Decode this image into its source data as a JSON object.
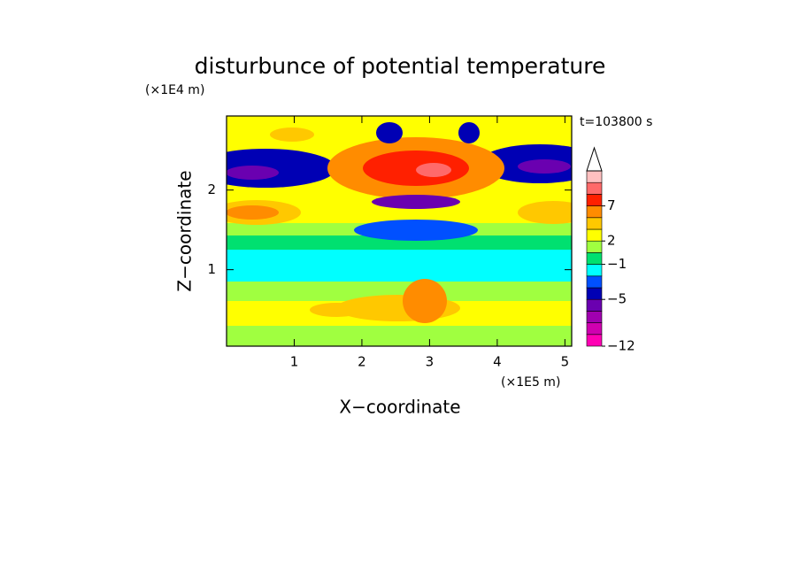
{
  "chart_data": {
    "type": "contour",
    "title": "disturbunce of potential temperature",
    "time_label": "t=103800 s",
    "x_label": "X−coordinate",
    "y_label": "Z−coordinate",
    "x_unit": "(×1E5 m)",
    "y_unit": "(×1E4 m)",
    "xlim": [
      0,
      5.1
    ],
    "xticks": [
      1,
      2,
      3,
      4,
      5
    ],
    "ylim": [
      0.04,
      2.93
    ],
    "yticks": [
      1,
      2
    ],
    "colorbar": {
      "levels": [
        -12,
        -10,
        -8,
        -6,
        -5,
        -4,
        -2,
        -1,
        1,
        2,
        3,
        5,
        7,
        9,
        11,
        13
      ],
      "colors": [
        "#ff00b4",
        "#d000b0",
        "#a000b0",
        "#6a00b0",
        "#0000b4",
        "#0050ff",
        "#00ffff",
        "#00e070",
        "#a0ff40",
        "#ffff00",
        "#ffc800",
        "#ff8c00",
        "#ff2000",
        "#ff6a6a",
        "#ffc0c0"
      ],
      "ticks": [
        {
          "value": -12,
          "label": "−12"
        },
        {
          "value": -5,
          "label": "−5"
        },
        {
          "value": -1,
          "label": "−1"
        },
        2,
        7
      ],
      "extend_top": true
    }
  }
}
